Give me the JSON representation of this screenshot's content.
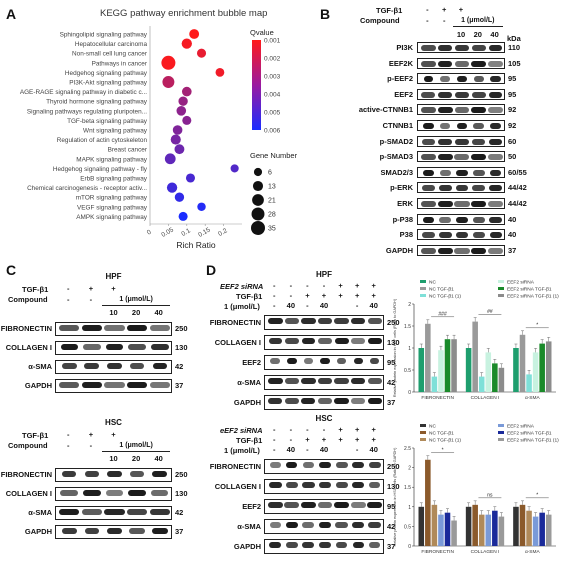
{
  "panels": {
    "A": {
      "letter": "A",
      "title": "KEGG pathway enrichment bubble map",
      "xlabel": "Rich Ratio",
      "qvalue_title": "Qvalue",
      "qvalue_ticks": [
        "0.001",
        "0.002",
        "0.003",
        "0.004",
        "0.005",
        "0.006"
      ],
      "gene_title": "Gene Number",
      "gene_sizes": [
        "6",
        "13",
        "21",
        "28",
        "35"
      ]
    },
    "B": {
      "letter": "B",
      "tgf": "TGF-β1",
      "compound": "Compound",
      "dose_unit": "1 (μmol/L)",
      "tgf_signs": [
        "-",
        "+",
        "+",
        "",
        ""
      ],
      "compound_signs": [
        "-",
        "-",
        "",
        "",
        ""
      ],
      "doses": [
        "10",
        "20",
        "40"
      ],
      "kda_header": "kDa",
      "rows": [
        {
          "name": "PI3K",
          "kda": "110"
        },
        {
          "name": "EEF2K",
          "kda": "105"
        },
        {
          "name": "p-EEF2",
          "kda": "95"
        },
        {
          "name": "EEF2",
          "kda": "95"
        },
        {
          "name": "active-CTNNB1",
          "kda": "92"
        },
        {
          "name": "CTNNB1",
          "kda": "92"
        },
        {
          "name": "p-SMAD2",
          "kda": "60"
        },
        {
          "name": "p-SMAD3",
          "kda": "50"
        },
        {
          "name": "SMAD2/3",
          "kda": "60/55"
        },
        {
          "name": "p-ERK",
          "kda": "44/42"
        },
        {
          "name": "ERK",
          "kda": "44/42"
        },
        {
          "name": "p-P38",
          "kda": "40"
        },
        {
          "name": "P38",
          "kda": "40"
        },
        {
          "name": "GAPDH",
          "kda": "37"
        }
      ]
    },
    "C": {
      "letter": "C",
      "hpf": "HPF",
      "hsc": "HSC",
      "tgf": "TGF-β1",
      "compound": "Compound",
      "dose_unit": "1 (μmol/L)",
      "tgf_signs": [
        "-",
        "+",
        "+"
      ],
      "compound_signs": [
        "-",
        "-"
      ],
      "doses": [
        "10",
        "20",
        "40"
      ],
      "rows": [
        {
          "name": "FIBRONECTIN",
          "kda": "250"
        },
        {
          "name": "COLLAGEN I",
          "kda": "130"
        },
        {
          "name": "α-SMA",
          "kda": "42"
        },
        {
          "name": "GAPDH",
          "kda": "37"
        }
      ]
    },
    "D": {
      "letter": "D",
      "hpf": "HPF",
      "hsc": "HSC",
      "sirna_hpf": "EEF2 siRNA",
      "sirna_hsc": "eEF2 siRNA",
      "tgf": "TGF-β1",
      "dose": "1 (μmol/L)",
      "sirna_signs": [
        "-",
        "-",
        "-",
        "-",
        "+",
        "+",
        "+"
      ],
      "tgf_signs": [
        "-",
        "-",
        "+",
        "+",
        "+",
        "+",
        "+"
      ],
      "dose_signs": [
        "-",
        "40",
        "-",
        "40",
        "",
        "-",
        "40"
      ],
      "rows_hpf": [
        {
          "name": "FIBRONECTIN",
          "kda": "250"
        },
        {
          "name": "COLLAGEN I",
          "kda": "130"
        },
        {
          "name": "EEF2",
          "kda": "95"
        },
        {
          "name": "α-SMA",
          "kda": "42"
        },
        {
          "name": "GAPDH",
          "kda": "37"
        }
      ],
      "rows_hsc": [
        {
          "name": "FIBRONECTIN",
          "kda": "250"
        },
        {
          "name": "COLLAGEN I",
          "kda": "130"
        },
        {
          "name": "EEF2",
          "kda": "95"
        },
        {
          "name": "α-SMA",
          "kda": "42"
        },
        {
          "name": "GAPDH",
          "kda": "37"
        }
      ]
    }
  },
  "chart_data": [
    {
      "type": "scatter",
      "title": "KEGG pathway enrichment bubble map",
      "xlabel": "Rich Ratio",
      "ylabel": "",
      "xlim": [
        0,
        0.25
      ],
      "x_ticks": [
        "0",
        "0.05",
        "0.1",
        "0.15",
        "0.2"
      ],
      "legend_color": "Qvalue",
      "legend_size": "Gene Number",
      "colors": {
        "low": "#1a2cff",
        "high": "#ff1a1a"
      },
      "points": [
        {
          "label": "Sphingolipid signaling pathway",
          "x": 0.12,
          "q": 0.001,
          "genes": 12
        },
        {
          "label": "Hepatocellular carcinoma",
          "x": 0.1,
          "q": 0.0012,
          "genes": 14
        },
        {
          "label": "Non-small cell lung cancer",
          "x": 0.14,
          "q": 0.0015,
          "genes": 9
        },
        {
          "label": "Pathways in cancer",
          "x": 0.05,
          "q": 0.0011,
          "genes": 35
        },
        {
          "label": "Hedgehog signaling pathway",
          "x": 0.19,
          "q": 0.0013,
          "genes": 8
        },
        {
          "label": "PI3K-Akt signaling pathway",
          "x": 0.05,
          "q": 0.0025,
          "genes": 22
        },
        {
          "label": "AGE-RAGE signaling pathway in diabetic c...",
          "x": 0.1,
          "q": 0.003,
          "genes": 11
        },
        {
          "label": "Thyroid hormone signaling pathway",
          "x": 0.09,
          "q": 0.0033,
          "genes": 10
        },
        {
          "label": "Signaling pathways regulating pluripoten...",
          "x": 0.085,
          "q": 0.0035,
          "genes": 11
        },
        {
          "label": "TGF-beta signaling pathway",
          "x": 0.1,
          "q": 0.0036,
          "genes": 9
        },
        {
          "label": "Wnt signaling pathway",
          "x": 0.075,
          "q": 0.0038,
          "genes": 11
        },
        {
          "label": "Regulation of actin cytoskeleton",
          "x": 0.07,
          "q": 0.004,
          "genes": 13
        },
        {
          "label": "Breast cancer",
          "x": 0.08,
          "q": 0.0042,
          "genes": 12
        },
        {
          "label": "MAPK signaling pathway",
          "x": 0.055,
          "q": 0.0045,
          "genes": 16
        },
        {
          "label": "Hedgehog signaling pathway - fly",
          "x": 0.23,
          "q": 0.0048,
          "genes": 6
        },
        {
          "label": "ErbB signaling pathway",
          "x": 0.11,
          "q": 0.005,
          "genes": 9
        },
        {
          "label": "Chemical carcinogenesis - receptor activ...",
          "x": 0.06,
          "q": 0.0052,
          "genes": 14
        },
        {
          "label": "mTOR signaling pathway",
          "x": 0.08,
          "q": 0.0055,
          "genes": 10
        },
        {
          "label": "VEGF signaling pathway",
          "x": 0.14,
          "q": 0.0058,
          "genes": 7
        },
        {
          "label": "AMPK signaling pathway",
          "x": 0.09,
          "q": 0.006,
          "genes": 9
        }
      ]
    },
    {
      "type": "bar",
      "title": "",
      "ylabel": "Relative protein expression in HPF cells (Ratio to GAPDH)",
      "ylim": [
        0,
        2
      ],
      "y_ticks": [
        "0",
        "0.5",
        "1",
        "1.5",
        "2"
      ],
      "categories": [
        "FIBRONECTIN",
        "COLLAGEN I",
        "α-SMA"
      ],
      "series": [
        {
          "name": "NC",
          "color": "#1e9e6e",
          "values": [
            1.0,
            1.0,
            1.0
          ]
        },
        {
          "name": "NC TGF-β1",
          "color": "#9a9a9a",
          "values": [
            1.55,
            1.6,
            1.3
          ]
        },
        {
          "name": "NC TGF-β1 (1)",
          "color": "#7fe0d8",
          "values": [
            0.35,
            0.35,
            0.4
          ]
        },
        {
          "name": "EEF2 siRNA",
          "color": "#c8f2e0",
          "values": [
            0.95,
            0.9,
            0.9
          ]
        },
        {
          "name": "EEF2 siRNA TGF-β1",
          "color": "#1a8a2a",
          "values": [
            1.2,
            0.65,
            1.1
          ]
        },
        {
          "name": "EEF2 siRNA TGF-β1 (1)",
          "color": "#8c8c8c",
          "values": [
            1.2,
            0.55,
            1.15
          ]
        }
      ],
      "annotations": [
        "###",
        "##",
        "*"
      ]
    },
    {
      "type": "bar",
      "title": "",
      "ylabel": "Relative protein expression in HSC cells (Ratio to GAPDH)",
      "ylim": [
        0,
        2.5
      ],
      "y_ticks": [
        "0",
        "0.5",
        "1",
        "1.5",
        "2",
        "2.5"
      ],
      "categories": [
        "FIBRONECTIN",
        "COLLAGEN I",
        "α-SMA"
      ],
      "series": [
        {
          "name": "NC",
          "color": "#333333",
          "values": [
            1.0,
            1.0,
            1.0
          ]
        },
        {
          "name": "NC TGF-β1",
          "color": "#8b5a2b",
          "values": [
            2.2,
            1.05,
            1.05
          ]
        },
        {
          "name": "NC TGF-β1 (1)",
          "color": "#b08a5a",
          "values": [
            1.05,
            0.8,
            0.9
          ]
        },
        {
          "name": "EEF2 siRNA",
          "color": "#7a9ad8",
          "values": [
            0.8,
            0.8,
            0.75
          ]
        },
        {
          "name": "EEF2 siRNA TGF-β1",
          "color": "#1a2a9a",
          "values": [
            0.85,
            0.9,
            0.85
          ]
        },
        {
          "name": "EEF2 siRNA TGF-β1 (1)",
          "color": "#9a9a9a",
          "values": [
            0.65,
            0.75,
            0.8
          ]
        }
      ],
      "annotations": [
        "*",
        "ns",
        "*"
      ]
    }
  ]
}
